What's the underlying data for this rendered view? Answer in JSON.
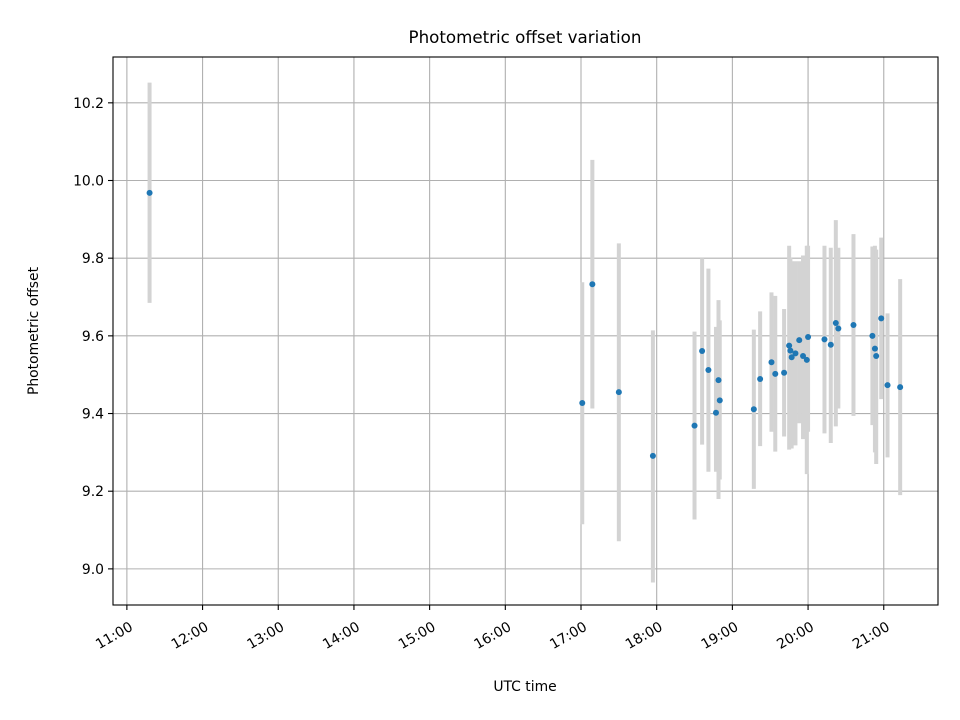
{
  "chart_data": {
    "type": "scatter",
    "title": "Photometric offset variation",
    "xlabel": "UTC time",
    "ylabel": "Photometric offset",
    "x_ticks": [
      "11:00",
      "12:00",
      "13:00",
      "14:00",
      "15:00",
      "16:00",
      "17:00",
      "18:00",
      "19:00",
      "20:00",
      "21:00"
    ],
    "y_ticks": [
      "9.0",
      "9.2",
      "9.4",
      "9.6",
      "9.8",
      "10.0",
      "10.2"
    ],
    "xlim": [
      "10:49",
      "21:43"
    ],
    "ylim": [
      8.907,
      10.318
    ],
    "grid": true,
    "colors": {
      "points": "#1f77b4",
      "errorbars": "#d3d3d3",
      "grid": "#b0b0b0"
    },
    "points": [
      {
        "x": "11:18",
        "y": 9.968,
        "yerr_low": 9.685,
        "yerr_high": 10.252
      },
      {
        "x": "17:01",
        "y": 9.427,
        "yerr_low": 9.115,
        "yerr_high": 9.738
      },
      {
        "x": "17:09",
        "y": 9.733,
        "yerr_low": 9.413,
        "yerr_high": 10.053
      },
      {
        "x": "17:30",
        "y": 9.455,
        "yerr_low": 9.071,
        "yerr_high": 9.838
      },
      {
        "x": "17:57",
        "y": 9.291,
        "yerr_low": 8.965,
        "yerr_high": 9.614
      },
      {
        "x": "18:30",
        "y": 9.369,
        "yerr_low": 9.127,
        "yerr_high": 9.611
      },
      {
        "x": "18:36",
        "y": 9.561,
        "yerr_low": 9.32,
        "yerr_high": 9.8
      },
      {
        "x": "18:41",
        "y": 9.512,
        "yerr_low": 9.25,
        "yerr_high": 9.773
      },
      {
        "x": "18:47",
        "y": 9.402,
        "yerr_low": 9.25,
        "yerr_high": 9.623
      },
      {
        "x": "18:49",
        "y": 9.486,
        "yerr_low": 9.18,
        "yerr_high": 9.692
      },
      {
        "x": "18:50",
        "y": 9.434,
        "yerr_low": 9.23,
        "yerr_high": 9.64
      },
      {
        "x": "19:17",
        "y": 9.411,
        "yerr_low": 9.206,
        "yerr_high": 9.616
      },
      {
        "x": "19:22",
        "y": 9.489,
        "yerr_low": 9.316,
        "yerr_high": 9.663
      },
      {
        "x": "19:31",
        "y": 9.532,
        "yerr_low": 9.353,
        "yerr_high": 9.712
      },
      {
        "x": "19:34",
        "y": 9.502,
        "yerr_low": 9.302,
        "yerr_high": 9.703
      },
      {
        "x": "19:41",
        "y": 9.505,
        "yerr_low": 9.341,
        "yerr_high": 9.669
      },
      {
        "x": "19:45",
        "y": 9.575,
        "yerr_low": 9.307,
        "yerr_high": 9.832
      },
      {
        "x": "19:46",
        "y": 9.562,
        "yerr_low": 9.322,
        "yerr_high": 9.802
      },
      {
        "x": "19:47",
        "y": 9.545,
        "yerr_low": 9.31,
        "yerr_high": 9.792
      },
      {
        "x": "19:50",
        "y": 9.555,
        "yerr_low": 9.318,
        "yerr_high": 9.792
      },
      {
        "x": "19:53",
        "y": 9.589,
        "yerr_low": 9.375,
        "yerr_high": 9.792
      },
      {
        "x": "19:56",
        "y": 9.548,
        "yerr_low": 9.334,
        "yerr_high": 9.807
      },
      {
        "x": "19:59",
        "y": 9.538,
        "yerr_low": 9.244,
        "yerr_high": 9.832
      },
      {
        "x": "20:00",
        "y": 9.597,
        "yerr_low": 9.353,
        "yerr_high": 9.832
      },
      {
        "x": "20:13",
        "y": 9.591,
        "yerr_low": 9.349,
        "yerr_high": 9.832
      },
      {
        "x": "20:18",
        "y": 9.577,
        "yerr_low": 9.324,
        "yerr_high": 9.827
      },
      {
        "x": "20:22",
        "y": 9.633,
        "yerr_low": 9.367,
        "yerr_high": 9.898
      },
      {
        "x": "20:24",
        "y": 9.619,
        "yerr_low": 9.413,
        "yerr_high": 9.827
      },
      {
        "x": "20:36",
        "y": 9.628,
        "yerr_low": 9.394,
        "yerr_high": 9.862
      },
      {
        "x": "20:51",
        "y": 9.6,
        "yerr_low": 9.37,
        "yerr_high": 9.83
      },
      {
        "x": "20:53",
        "y": 9.567,
        "yerr_low": 9.3,
        "yerr_high": 9.832
      },
      {
        "x": "20:54",
        "y": 9.548,
        "yerr_low": 9.27,
        "yerr_high": 9.822
      },
      {
        "x": "20:58",
        "y": 9.645,
        "yerr_low": 9.437,
        "yerr_high": 9.853
      },
      {
        "x": "21:03",
        "y": 9.473,
        "yerr_low": 9.287,
        "yerr_high": 9.658
      },
      {
        "x": "21:13",
        "y": 9.468,
        "yerr_low": 9.19,
        "yerr_high": 9.746
      }
    ]
  }
}
